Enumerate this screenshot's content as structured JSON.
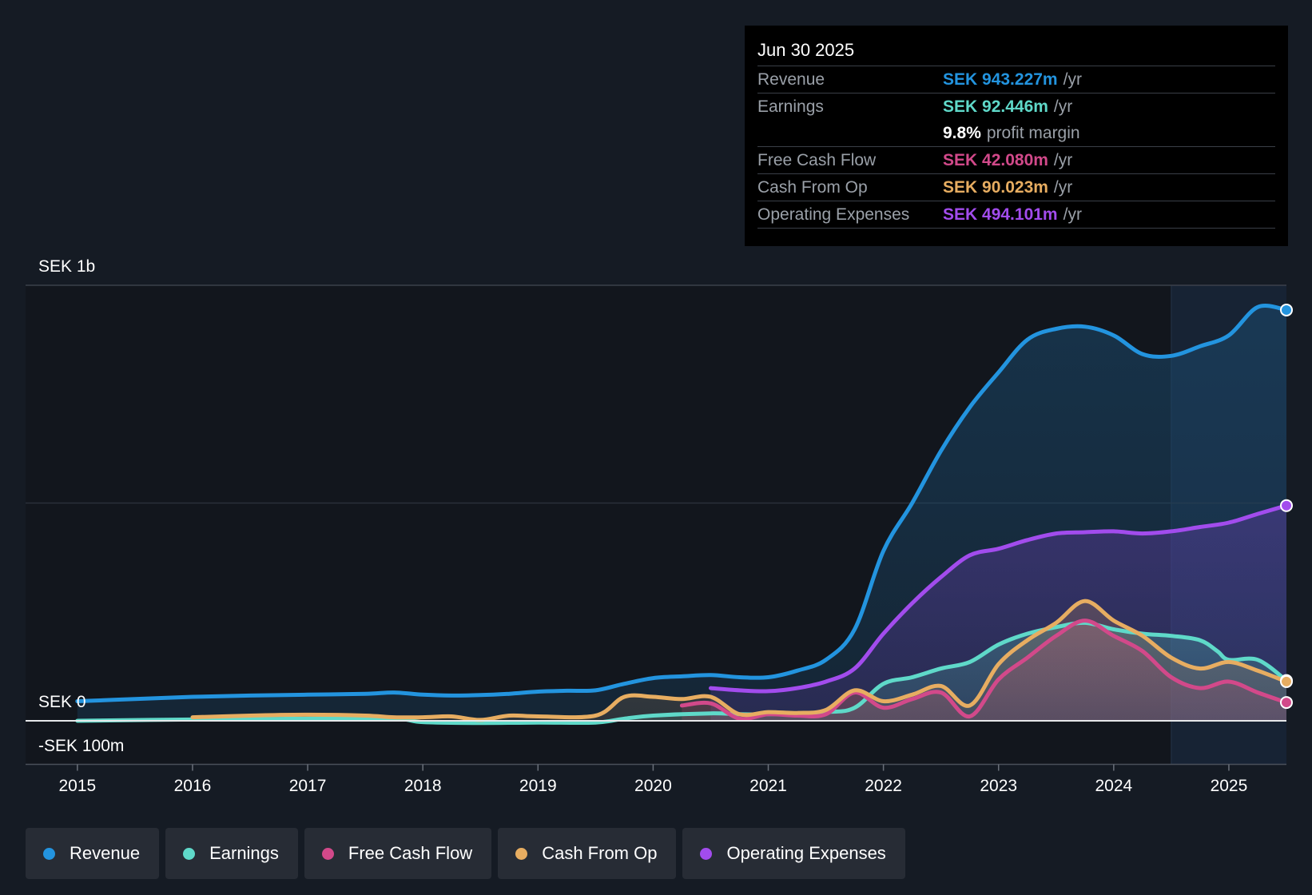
{
  "chart_data": {
    "type": "area",
    "y_axis": {
      "top_label": "SEK 1b",
      "zero_label": "SEK 0",
      "bottom_label": "-SEK 100m",
      "ylim": [
        -100,
        1000
      ],
      "unit": "SEK m"
    },
    "x_ticks": [
      "2015",
      "2016",
      "2017",
      "2018",
      "2019",
      "2020",
      "2021",
      "2022",
      "2023",
      "2024",
      "2025"
    ],
    "xlim": [
      2014.55,
      2025.5
    ],
    "highlight_start": 2024.5,
    "series": [
      {
        "name": "Revenue",
        "color": "#2394df",
        "fill": "#1b4a6e",
        "area_opacity": 0.55,
        "points": [
          [
            2015.0,
            45
          ],
          [
            2015.5,
            50
          ],
          [
            2016.0,
            55
          ],
          [
            2016.5,
            58
          ],
          [
            2017.0,
            60
          ],
          [
            2017.5,
            62
          ],
          [
            2017.75,
            65
          ],
          [
            2018.0,
            60
          ],
          [
            2018.25,
            58
          ],
          [
            2018.5,
            59
          ],
          [
            2018.75,
            62
          ],
          [
            2019.0,
            67
          ],
          [
            2019.25,
            69
          ],
          [
            2019.5,
            70
          ],
          [
            2019.75,
            85
          ],
          [
            2020.0,
            98
          ],
          [
            2020.25,
            102
          ],
          [
            2020.5,
            105
          ],
          [
            2020.75,
            100
          ],
          [
            2021.0,
            100
          ],
          [
            2021.25,
            115
          ],
          [
            2021.5,
            140
          ],
          [
            2021.75,
            210
          ],
          [
            2022.0,
            390
          ],
          [
            2022.25,
            500
          ],
          [
            2022.5,
            620
          ],
          [
            2022.75,
            720
          ],
          [
            2023.0,
            800
          ],
          [
            2023.25,
            875
          ],
          [
            2023.5,
            900
          ],
          [
            2023.75,
            905
          ],
          [
            2024.0,
            885
          ],
          [
            2024.25,
            842
          ],
          [
            2024.5,
            838
          ],
          [
            2024.75,
            860
          ],
          [
            2025.0,
            885
          ],
          [
            2025.25,
            950
          ],
          [
            2025.5,
            943.227
          ]
        ]
      },
      {
        "name": "Operating Expenses",
        "color": "#a24ced",
        "fill": "#6a3fb0",
        "area_opacity": 0.4,
        "points": [
          [
            2020.5,
            75
          ],
          [
            2020.75,
            70
          ],
          [
            2021.0,
            68
          ],
          [
            2021.25,
            75
          ],
          [
            2021.5,
            90
          ],
          [
            2021.75,
            120
          ],
          [
            2022.0,
            200
          ],
          [
            2022.25,
            270
          ],
          [
            2022.5,
            330
          ],
          [
            2022.75,
            380
          ],
          [
            2023.0,
            395
          ],
          [
            2023.25,
            415
          ],
          [
            2023.5,
            430
          ],
          [
            2023.75,
            433
          ],
          [
            2024.0,
            435
          ],
          [
            2024.25,
            430
          ],
          [
            2024.5,
            435
          ],
          [
            2024.75,
            445
          ],
          [
            2025.0,
            455
          ],
          [
            2025.25,
            475
          ],
          [
            2025.5,
            494.101
          ]
        ]
      },
      {
        "name": "Earnings",
        "color": "#5fd9c9",
        "fill": "#4aa6a0",
        "area_opacity": 0.35,
        "points": [
          [
            2015.0,
            0
          ],
          [
            2016.0,
            3
          ],
          [
            2017.0,
            5
          ],
          [
            2017.75,
            5
          ],
          [
            2018.0,
            -3
          ],
          [
            2018.5,
            -5
          ],
          [
            2019.0,
            -4
          ],
          [
            2019.5,
            -4
          ],
          [
            2019.75,
            5
          ],
          [
            2020.0,
            12
          ],
          [
            2020.5,
            17
          ],
          [
            2020.75,
            15
          ],
          [
            2021.0,
            15
          ],
          [
            2021.5,
            20
          ],
          [
            2021.75,
            30
          ],
          [
            2022.0,
            85
          ],
          [
            2022.25,
            100
          ],
          [
            2022.5,
            120
          ],
          [
            2022.75,
            135
          ],
          [
            2023.0,
            175
          ],
          [
            2023.25,
            200
          ],
          [
            2023.5,
            215
          ],
          [
            2023.75,
            225
          ],
          [
            2024.0,
            210
          ],
          [
            2024.25,
            200
          ],
          [
            2024.5,
            195
          ],
          [
            2024.75,
            185
          ],
          [
            2024.9,
            160
          ],
          [
            2025.0,
            140
          ],
          [
            2025.25,
            140
          ],
          [
            2025.5,
            92.446
          ]
        ]
      },
      {
        "name": "Free Cash Flow",
        "color": "#d2498a",
        "fill": "#b04070",
        "area_opacity": 0.35,
        "points": [
          [
            2020.25,
            35
          ],
          [
            2020.5,
            40
          ],
          [
            2020.75,
            5
          ],
          [
            2021.0,
            15
          ],
          [
            2021.25,
            12
          ],
          [
            2021.5,
            15
          ],
          [
            2021.75,
            65
          ],
          [
            2022.0,
            30
          ],
          [
            2022.25,
            50
          ],
          [
            2022.5,
            65
          ],
          [
            2022.75,
            10
          ],
          [
            2023.0,
            95
          ],
          [
            2023.25,
            145
          ],
          [
            2023.5,
            195
          ],
          [
            2023.75,
            230
          ],
          [
            2024.0,
            195
          ],
          [
            2024.25,
            160
          ],
          [
            2024.5,
            100
          ],
          [
            2024.75,
            75
          ],
          [
            2025.0,
            90
          ],
          [
            2025.25,
            65
          ],
          [
            2025.5,
            42.08
          ]
        ]
      },
      {
        "name": "Cash From Op",
        "color": "#e7ad61",
        "fill": "#c8905a",
        "area_opacity": 0.25,
        "points": [
          [
            2016.0,
            8
          ],
          [
            2016.5,
            12
          ],
          [
            2017.0,
            14
          ],
          [
            2017.5,
            12
          ],
          [
            2017.75,
            8
          ],
          [
            2018.0,
            8
          ],
          [
            2018.25,
            10
          ],
          [
            2018.5,
            2
          ],
          [
            2018.75,
            12
          ],
          [
            2019.0,
            10
          ],
          [
            2019.5,
            12
          ],
          [
            2019.75,
            55
          ],
          [
            2020.0,
            55
          ],
          [
            2020.25,
            50
          ],
          [
            2020.5,
            55
          ],
          [
            2020.75,
            15
          ],
          [
            2021.0,
            20
          ],
          [
            2021.25,
            18
          ],
          [
            2021.5,
            25
          ],
          [
            2021.75,
            70
          ],
          [
            2022.0,
            45
          ],
          [
            2022.25,
            60
          ],
          [
            2022.5,
            80
          ],
          [
            2022.75,
            35
          ],
          [
            2023.0,
            130
          ],
          [
            2023.25,
            185
          ],
          [
            2023.5,
            225
          ],
          [
            2023.75,
            275
          ],
          [
            2024.0,
            230
          ],
          [
            2024.25,
            195
          ],
          [
            2024.5,
            145
          ],
          [
            2024.75,
            120
          ],
          [
            2025.0,
            135
          ],
          [
            2025.25,
            115
          ],
          [
            2025.5,
            90.023
          ]
        ]
      }
    ],
    "draw_order": [
      "Revenue",
      "Operating Expenses",
      "Earnings",
      "Free Cash Flow",
      "Cash From Op"
    ]
  },
  "tooltip": {
    "date": "Jun 30 2025",
    "rows": [
      {
        "label": "Revenue",
        "value": "SEK 943.227m",
        "unit": "/yr",
        "color": "#2394df"
      },
      {
        "label": "Earnings",
        "value": "SEK 92.446m",
        "unit": "/yr",
        "color": "#5fd9c9"
      },
      {
        "label": "",
        "value": "9.8%",
        "unit": "profit margin",
        "color": "#ffffff"
      },
      {
        "label": "Free Cash Flow",
        "value": "SEK 42.080m",
        "unit": "/yr",
        "color": "#d2498a"
      },
      {
        "label": "Cash From Op",
        "value": "SEK 90.023m",
        "unit": "/yr",
        "color": "#e7ad61"
      },
      {
        "label": "Operating Expenses",
        "value": "SEK 494.101m",
        "unit": "/yr",
        "color": "#a24ced"
      }
    ]
  },
  "legend": [
    {
      "label": "Revenue",
      "color": "#2394df"
    },
    {
      "label": "Earnings",
      "color": "#5fd9c9"
    },
    {
      "label": "Free Cash Flow",
      "color": "#d2498a"
    },
    {
      "label": "Cash From Op",
      "color": "#e7ad61"
    },
    {
      "label": "Operating Expenses",
      "color": "#a24ced"
    }
  ]
}
